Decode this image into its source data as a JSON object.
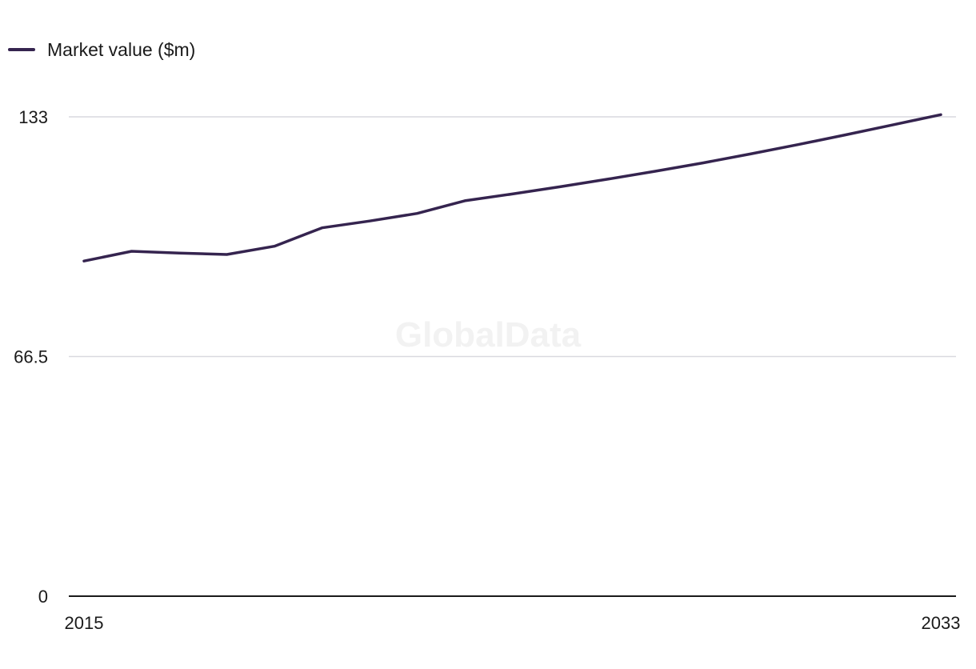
{
  "colors": {
    "series": "#35244f",
    "grid": "#d9d9df",
    "axis": "#1a1a1a",
    "watermark": "#f2f2f2"
  },
  "watermark": "GlobalData",
  "chart_data": {
    "type": "line",
    "title": "",
    "xlabel": "",
    "ylabel": "",
    "legend_position": "top-left",
    "grid": true,
    "xlim": [
      2015,
      2033
    ],
    "ylim": [
      0,
      133
    ],
    "x_tick_labels": [
      "2015",
      "2033"
    ],
    "y_tick_labels": [
      "0",
      "66.5",
      "133"
    ],
    "x": [
      2015,
      2016,
      2017,
      2018,
      2019,
      2020,
      2021,
      2022,
      2023,
      2024,
      2025,
      2026,
      2027,
      2028,
      2029,
      2030,
      2031,
      2032,
      2033
    ],
    "series": [
      {
        "name": "Market value ($m)",
        "values": [
          93,
          95.7,
          95.2,
          94.8,
          97.1,
          102.2,
          104.1,
          106.2,
          109.7,
          111.6,
          113.6,
          115.7,
          117.9,
          120.2,
          122.7,
          125.3,
          128.0,
          130.8,
          133.6
        ]
      }
    ]
  }
}
